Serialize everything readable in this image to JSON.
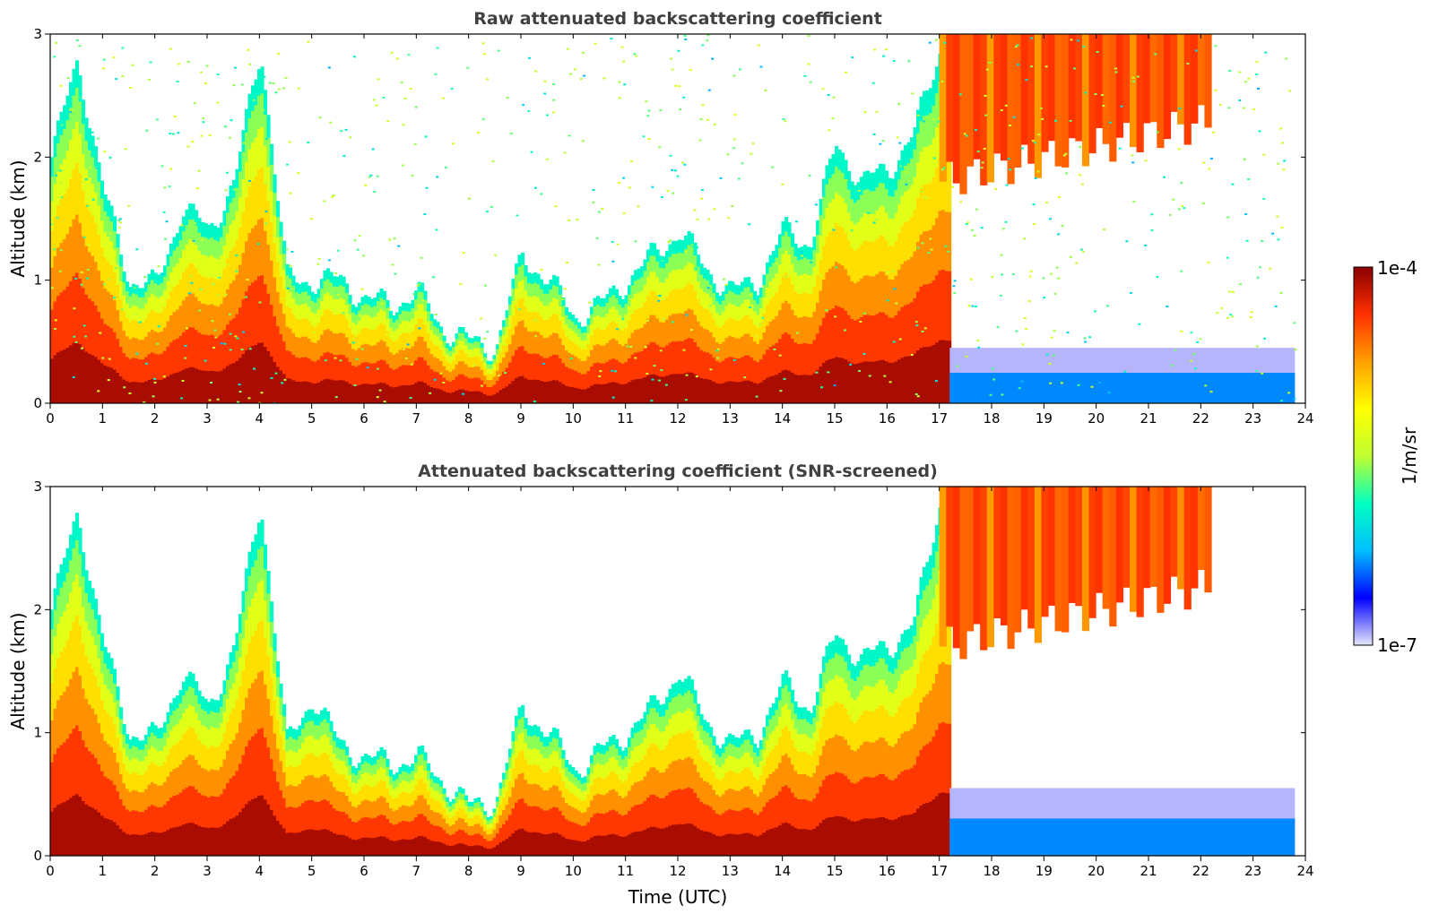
{
  "figure": {
    "colorbar": {
      "max_label": "1e-4",
      "min_label": "1e-7",
      "unit_label": "1/m/sr",
      "scale": "log",
      "range": [
        1e-07,
        0.0001
      ],
      "colormap": [
        "#e6e6fa",
        "#0000ff",
        "#00bfff",
        "#00ffc0",
        "#c0ff30",
        "#ffff00",
        "#ffa000",
        "#ff3000",
        "#8b0000"
      ]
    },
    "xlabel": "Time (UTC)"
  },
  "chart_data": [
    {
      "type": "heatmap",
      "title": "Raw attenuated backscattering coefficient",
      "xlabel": "",
      "ylabel": "Altitude (km)",
      "xlim": [
        0,
        24
      ],
      "ylim": [
        0,
        3
      ],
      "x_ticks": [
        "0",
        "1",
        "2",
        "3",
        "4",
        "5",
        "6",
        "7",
        "8",
        "9",
        "10",
        "11",
        "12",
        "13",
        "14",
        "15",
        "16",
        "17",
        "18",
        "19",
        "20",
        "21",
        "22",
        "23",
        "24"
      ],
      "y_ticks": [
        "0",
        "1",
        "2",
        "3"
      ],
      "boundary_layer_top_km": {
        "x": [
          0,
          0.5,
          1,
          1.5,
          2,
          2.5,
          3,
          3.5,
          4,
          4.5,
          5,
          5.5,
          6,
          6.5,
          7,
          7.5,
          8,
          8.5,
          9,
          9.5,
          10,
          10.5,
          11,
          11.5,
          12,
          12.5,
          13,
          13.5,
          14,
          14.5,
          15,
          15.5,
          16,
          16.5,
          17
        ],
        "y": [
          2.0,
          2.8,
          1.7,
          1.0,
          0.95,
          1.6,
          1.4,
          1.8,
          2.9,
          1.0,
          1.0,
          1.0,
          0.85,
          0.8,
          0.9,
          0.6,
          0.5,
          0.45,
          1.2,
          1.0,
          0.7,
          0.8,
          1.0,
          1.2,
          1.4,
          1.1,
          0.9,
          1.0,
          1.4,
          1.3,
          2.1,
          1.8,
          1.9,
          2.2,
          2.9
        ]
      },
      "features": {
        "high_cloud": {
          "x_range": [
            17.0,
            22.2
          ],
          "base_km": [
            1.8,
            2.3
          ],
          "top_km": 3.0,
          "value": "3e-5"
        },
        "surface_layer_after_17h": {
          "x_range": [
            17.2,
            23.8
          ],
          "top_km": 0.45,
          "value": "2e-7"
        },
        "noise_above_boundary_layer": "1e-6"
      }
    },
    {
      "type": "heatmap",
      "title": "Attenuated backscattering coefficient (SNR-screened)",
      "xlabel": "Time (UTC)",
      "ylabel": "Altitude (km)",
      "xlim": [
        0,
        24
      ],
      "ylim": [
        0,
        3
      ],
      "x_ticks": [
        "0",
        "1",
        "2",
        "3",
        "4",
        "5",
        "6",
        "7",
        "8",
        "9",
        "10",
        "11",
        "12",
        "13",
        "14",
        "15",
        "16",
        "17",
        "18",
        "19",
        "20",
        "21",
        "22",
        "23",
        "24"
      ],
      "y_ticks": [
        "0",
        "1",
        "2",
        "3"
      ],
      "boundary_layer_top_km": {
        "x": [
          0,
          0.5,
          1,
          1.5,
          2,
          2.5,
          3,
          3.5,
          4,
          4.5,
          5,
          5.5,
          6,
          6.5,
          7,
          7.5,
          8,
          8.5,
          9,
          9.5,
          10,
          10.5,
          11,
          11.5,
          12,
          12.5,
          13,
          13.5,
          14,
          14.5,
          15,
          15.5,
          16,
          16.5,
          17
        ],
        "y": [
          2.0,
          2.8,
          1.7,
          1.0,
          0.95,
          1.5,
          1.2,
          1.7,
          2.9,
          0.9,
          1.3,
          0.9,
          0.8,
          0.75,
          0.8,
          0.6,
          0.4,
          0.45,
          1.2,
          1.0,
          0.7,
          0.85,
          1.0,
          1.2,
          1.5,
          1.1,
          0.9,
          1.0,
          1.4,
          1.2,
          1.8,
          1.6,
          1.7,
          1.9,
          2.9
        ]
      },
      "features": {
        "high_cloud": {
          "x_range": [
            17.0,
            22.2
          ],
          "base_km": [
            1.7,
            2.2
          ],
          "top_km": 3.0,
          "value": "3e-5"
        },
        "surface_layer_after_17h": {
          "x_range": [
            17.2,
            23.8
          ],
          "top_km": 0.55,
          "value": "2e-7"
        }
      }
    }
  ]
}
